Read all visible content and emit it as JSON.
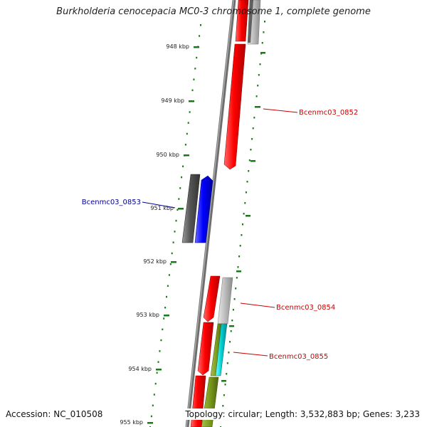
{
  "title": "Burkholderia cenocepacia MC0-3 chromosome 1, complete genome",
  "footer": {
    "accession": "Accession: NC_010508",
    "topology": "Topology: circular; Length: 3,532,883 bp; Genes: 3,233"
  },
  "ticks": [
    {
      "label": "948 kbp"
    },
    {
      "label": "949 kbp"
    },
    {
      "label": "950 kbp"
    },
    {
      "label": "951 kbp"
    },
    {
      "label": "952 kbp"
    },
    {
      "label": "953 kbp"
    },
    {
      "label": "954 kbp"
    },
    {
      "label": "955 kbp"
    }
  ],
  "gene_labels": [
    {
      "name": "Bcenmc03_0852",
      "color": "#cc0000"
    },
    {
      "name": "Bcenmc03_0853",
      "color": "#000099"
    },
    {
      "name": "Bcenmc03_0854",
      "color": "#cc0000"
    },
    {
      "name": "Bcenmc03_0855",
      "color": "#cc0000"
    }
  ],
  "colors": {
    "backbone": "#808080",
    "ticks": "#1a7a1a",
    "forward_cds": "#ff0000",
    "reverse_cds": "#0000ff",
    "gene_grey": "#555555",
    "light_grey": "#bbbbbb",
    "olive": "#7a9a1a",
    "cyan": "#00cccc"
  }
}
